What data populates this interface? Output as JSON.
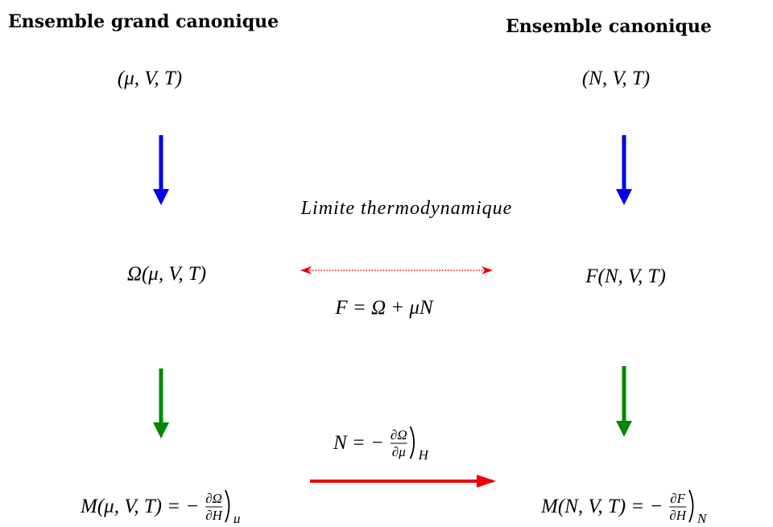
{
  "left": {
    "title": "Ensemble grand canonique",
    "variables": "(μ, V, T)",
    "potential": "Ω(μ, V, T)",
    "magnetization": {
      "lhs": "M(μ, V, T) = −",
      "num": "∂Ω",
      "den": "∂H",
      "sub": "μ"
    }
  },
  "right": {
    "title": "Ensemble canonique",
    "variables": "(N, V, T)",
    "potential": "F(N, V, T)",
    "magnetization": {
      "lhs": "M(N, V, T) = −",
      "num": "∂F",
      "den": "∂H",
      "sub": "N"
    }
  },
  "center": {
    "label": "Limite thermodynamique",
    "relation": "F = Ω + μN",
    "derivative": {
      "lhs": "N = −",
      "num": "∂Ω",
      "den": "∂μ",
      "sub": "H"
    }
  }
}
